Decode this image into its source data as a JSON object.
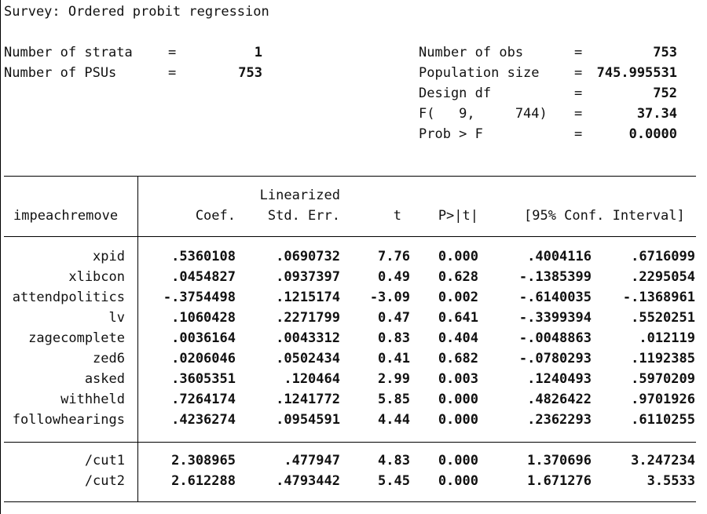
{
  "title": "Survey: Ordered probit regression",
  "header_left": [
    {
      "label": "Number of strata",
      "eq": "=",
      "value": "1"
    },
    {
      "label": "Number of PSUs",
      "eq": "=",
      "value": "753"
    }
  ],
  "header_right": [
    {
      "label": "Number of obs",
      "eq": "=",
      "value": "753"
    },
    {
      "label": "Population size",
      "eq": "=",
      "value": "745.995531"
    },
    {
      "label": "Design df",
      "eq": "=",
      "value": "752"
    },
    {
      "label": "F(   9,     744)",
      "eq": "=",
      "value": "37.34"
    },
    {
      "label": "Prob > F",
      "eq": "=",
      "value": "0.0000"
    }
  ],
  "table": {
    "depvar": "impeachremove",
    "col_headers": {
      "coef": "Coef.",
      "se_top": "Linearized",
      "se": "Std. Err.",
      "t": "t",
      "p": "P>|t|",
      "ci": "[95% Conf. Interval]"
    },
    "rows": [
      {
        "name": "xpid",
        "coef": ".5360108",
        "se": ".0690732",
        "t": "7.76",
        "p": "0.000",
        "lo": ".4004116",
        "hi": ".6716099"
      },
      {
        "name": "xlibcon",
        "coef": ".0454827",
        "se": ".0937397",
        "t": "0.49",
        "p": "0.628",
        "lo": "-.1385399",
        "hi": ".2295054"
      },
      {
        "name": "attendpolitics",
        "coef": "-.3754498",
        "se": ".1215174",
        "t": "-3.09",
        "p": "0.002",
        "lo": "-.6140035",
        "hi": "-.1368961"
      },
      {
        "name": "lv",
        "coef": ".1060428",
        "se": ".2271799",
        "t": "0.47",
        "p": "0.641",
        "lo": "-.3399394",
        "hi": ".5520251"
      },
      {
        "name": "zagecomplete",
        "coef": ".0036164",
        "se": ".0043312",
        "t": "0.83",
        "p": "0.404",
        "lo": "-.0048863",
        "hi": ".012119"
      },
      {
        "name": "zed6",
        "coef": ".0206046",
        "se": ".0502434",
        "t": "0.41",
        "p": "0.682",
        "lo": "-.0780293",
        "hi": ".1192385"
      },
      {
        "name": "asked",
        "coef": ".3605351",
        "se": ".120464",
        "t": "2.99",
        "p": "0.003",
        "lo": ".1240493",
        "hi": ".5970209"
      },
      {
        "name": "withheld",
        "coef": ".7264174",
        "se": ".1241772",
        "t": "5.85",
        "p": "0.000",
        "lo": ".4826422",
        "hi": ".9701926"
      },
      {
        "name": "followhearings",
        "coef": ".4236274",
        "se": ".0954591",
        "t": "4.44",
        "p": "0.000",
        "lo": ".2362293",
        "hi": ".6110255"
      }
    ],
    "cut_rows": [
      {
        "name": "/cut1",
        "coef": "2.308965",
        "se": ".477947",
        "t": "4.83",
        "p": "0.000",
        "lo": "1.370696",
        "hi": "3.247234"
      },
      {
        "name": "/cut2",
        "coef": "2.612288",
        "se": ".4793442",
        "t": "5.45",
        "p": "0.000",
        "lo": "1.671276",
        "hi": "3.5533"
      }
    ]
  }
}
